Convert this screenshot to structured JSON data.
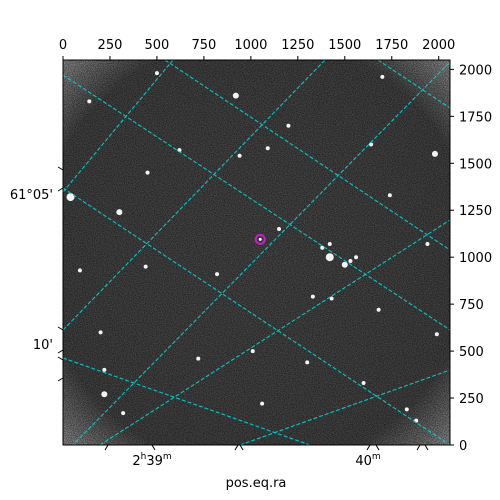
{
  "chart_data": {
    "type": "astronomical-image",
    "xlabel": "pos.eq.ra",
    "ylabel": "",
    "pixel_axes": {
      "x_ticks": [
        "0",
        "250",
        "500",
        "750",
        "1000",
        "1250",
        "1500",
        "1750",
        "2000"
      ],
      "x_tick_values": [
        0,
        250,
        500,
        750,
        1000,
        1250,
        1500,
        1750,
        2000
      ],
      "y_ticks": [
        "0",
        "250",
        "500",
        "750",
        "1000",
        "1250",
        "1500",
        "1750",
        "2000"
      ],
      "y_tick_values": [
        0,
        250,
        500,
        750,
        1000,
        1250,
        1500,
        1750,
        2000
      ],
      "xlim": [
        0,
        2060
      ],
      "ylim": [
        0,
        2050
      ]
    },
    "ra_axis": {
      "ticks": [
        {
          "label_main": "2",
          "label_sup": "h",
          "label_rest": "39",
          "label_sup2": "m"
        },
        {
          "label_main": "40",
          "label_sup": "m",
          "label_rest": "",
          "label_sup2": ""
        }
      ]
    },
    "dec_axis": {
      "ticks": [
        "61°05'",
        "10'"
      ]
    },
    "grid": true,
    "grid_color": "#00d5d5",
    "image_colormap": "gray",
    "marker": {
      "color": "#c81ec8",
      "x": 1050,
      "y": 1095
    },
    "stars": [
      {
        "x": 920,
        "y": 1860,
        "r": 3
      },
      {
        "x": 1420,
        "y": 1000,
        "r": 4
      },
      {
        "x": 1500,
        "y": 960,
        "r": 3
      },
      {
        "x": 1530,
        "y": 980,
        "r": 2
      },
      {
        "x": 1560,
        "y": 1000,
        "r": 2
      },
      {
        "x": 1380,
        "y": 1050,
        "r": 2
      },
      {
        "x": 1420,
        "y": 1070,
        "r": 2
      },
      {
        "x": 1330,
        "y": 790,
        "r": 2
      },
      {
        "x": 1430,
        "y": 780,
        "r": 2
      },
      {
        "x": 300,
        "y": 1240,
        "r": 3
      },
      {
        "x": 40,
        "y": 1320,
        "r": 4
      },
      {
        "x": 450,
        "y": 1450,
        "r": 2
      },
      {
        "x": 620,
        "y": 1570,
        "r": 2
      },
      {
        "x": 940,
        "y": 1540,
        "r": 2
      },
      {
        "x": 1090,
        "y": 1580,
        "r": 2
      },
      {
        "x": 1640,
        "y": 1600,
        "r": 2
      },
      {
        "x": 1980,
        "y": 1550,
        "r": 3
      },
      {
        "x": 1740,
        "y": 1330,
        "r": 2
      },
      {
        "x": 1940,
        "y": 1070,
        "r": 2
      },
      {
        "x": 140,
        "y": 1830,
        "r": 2
      },
      {
        "x": 500,
        "y": 1980,
        "r": 2
      },
      {
        "x": 1150,
        "y": 1150,
        "r": 2
      },
      {
        "x": 200,
        "y": 600,
        "r": 2
      },
      {
        "x": 90,
        "y": 930,
        "r": 2
      },
      {
        "x": 220,
        "y": 400,
        "r": 2
      },
      {
        "x": 440,
        "y": 950,
        "r": 2
      },
      {
        "x": 820,
        "y": 910,
        "r": 2
      },
      {
        "x": 1680,
        "y": 720,
        "r": 2
      },
      {
        "x": 1990,
        "y": 590,
        "r": 2
      },
      {
        "x": 1010,
        "y": 500,
        "r": 2
      },
      {
        "x": 1060,
        "y": 220,
        "r": 2
      },
      {
        "x": 1830,
        "y": 190,
        "r": 2
      },
      {
        "x": 1880,
        "y": 130,
        "r": 2
      },
      {
        "x": 320,
        "y": 170,
        "r": 2
      },
      {
        "x": 220,
        "y": 270,
        "r": 3
      },
      {
        "x": 1300,
        "y": 440,
        "r": 2
      },
      {
        "x": 720,
        "y": 460,
        "r": 2
      },
      {
        "x": 1600,
        "y": 330,
        "r": 2
      },
      {
        "x": 1700,
        "y": 1960,
        "r": 2
      },
      {
        "x": 1200,
        "y": 1700,
        "r": 2
      }
    ]
  }
}
